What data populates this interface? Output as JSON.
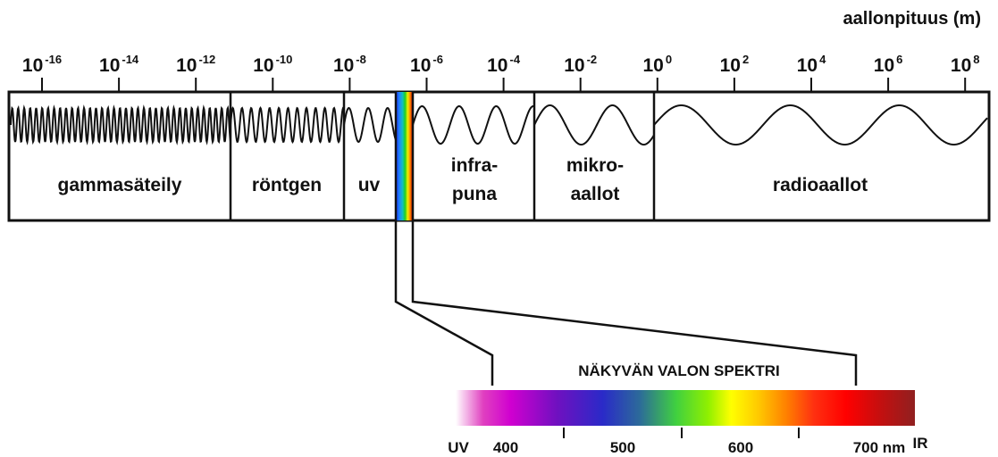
{
  "axis": {
    "unit_label": "aallonpituus (m)",
    "ticks": [
      {
        "base": "10",
        "exp": "-16"
      },
      {
        "base": "10",
        "exp": "-14"
      },
      {
        "base": "10",
        "exp": "-12"
      },
      {
        "base": "10",
        "exp": "-10"
      },
      {
        "base": "10",
        "exp": "-8"
      },
      {
        "base": "10",
        "exp": "-6"
      },
      {
        "base": "10",
        "exp": "-4"
      },
      {
        "base": "10",
        "exp": "-2"
      },
      {
        "base": "10",
        "exp": "0"
      },
      {
        "base": "10",
        "exp": "2"
      },
      {
        "base": "10",
        "exp": "4"
      },
      {
        "base": "10",
        "exp": "6"
      },
      {
        "base": "10",
        "exp": "8"
      }
    ]
  },
  "bands": [
    {
      "line1": "gammasäteily",
      "line2": ""
    },
    {
      "line1": "röntgen",
      "line2": ""
    },
    {
      "line1": "uv",
      "line2": ""
    },
    {
      "line1": "infra-",
      "line2": "puna"
    },
    {
      "line1": "mikro-",
      "line2": "aallot"
    },
    {
      "line1": "radioaallot",
      "line2": ""
    }
  ],
  "visible": {
    "title": "NÄKYVÄN VALON SPEKTRI",
    "left_label": "UV",
    "right_label": "IR",
    "ticks": [
      "400",
      "500",
      "600",
      "700 nm"
    ]
  }
}
